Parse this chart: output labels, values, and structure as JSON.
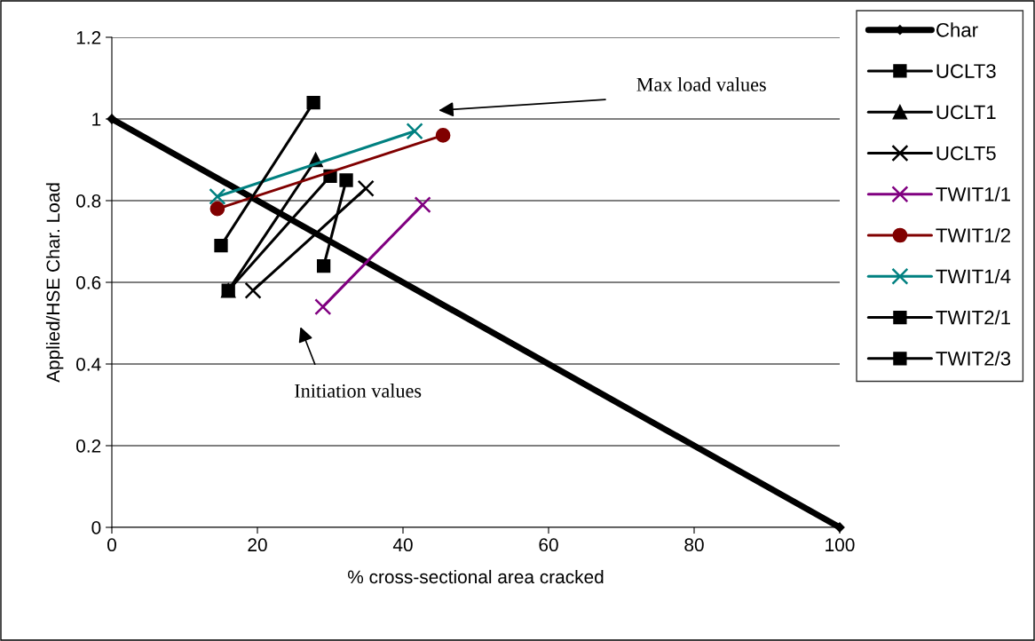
{
  "chart_data": {
    "type": "line",
    "xlabel": "% cross-sectional area cracked",
    "ylabel": "Applied/HSE Char. Load",
    "xlim": [
      0,
      100
    ],
    "xticks": [
      0,
      20,
      40,
      60,
      80,
      100
    ],
    "ylim": [
      0,
      1.2
    ],
    "yticks": [
      0,
      0.2,
      0.4,
      0.6,
      0.8,
      1,
      1.2
    ],
    "grid": "y",
    "legend": "right",
    "series": [
      {
        "name": "Char",
        "color": "#000000",
        "marker": "diamond",
        "x": [
          0,
          100
        ],
        "values": [
          1,
          0
        ]
      },
      {
        "name": "UCLT3",
        "color": "#000000",
        "marker": "square",
        "x": [
          16,
          30
        ],
        "values": [
          0.58,
          0.86
        ]
      },
      {
        "name": "UCLT1",
        "color": "#000000",
        "marker": "triangle",
        "x": [
          16,
          28
        ],
        "values": [
          0.58,
          0.9
        ]
      },
      {
        "name": "UCLT5",
        "color": "#000000",
        "marker": "cross",
        "x": [
          19.4,
          34.9
        ],
        "values": [
          0.58,
          0.83
        ]
      },
      {
        "name": "TWIT1/1",
        "color": "#800080",
        "marker": "cross",
        "x": [
          29,
          42.7
        ],
        "values": [
          0.54,
          0.79
        ]
      },
      {
        "name": "TWIT1/2",
        "color": "#800000",
        "marker": "circle",
        "x": [
          14.5,
          45.5
        ],
        "values": [
          0.78,
          0.96
        ]
      },
      {
        "name": "TWIT1/4",
        "color": "#008080",
        "marker": "cross",
        "x": [
          14.5,
          41.6
        ],
        "values": [
          0.81,
          0.97
        ]
      },
      {
        "name": "TWIT2/1",
        "color": "#000000",
        "marker": "square",
        "x": [
          15,
          27.7
        ],
        "values": [
          0.69,
          1.04
        ]
      },
      {
        "name": "TWIT2/3",
        "color": "#000000",
        "marker": "square",
        "x": [
          29.1,
          32.2
        ],
        "values": [
          0.64,
          0.85
        ]
      }
    ],
    "annotations": [
      "Max load values",
      "Initiation values"
    ]
  }
}
